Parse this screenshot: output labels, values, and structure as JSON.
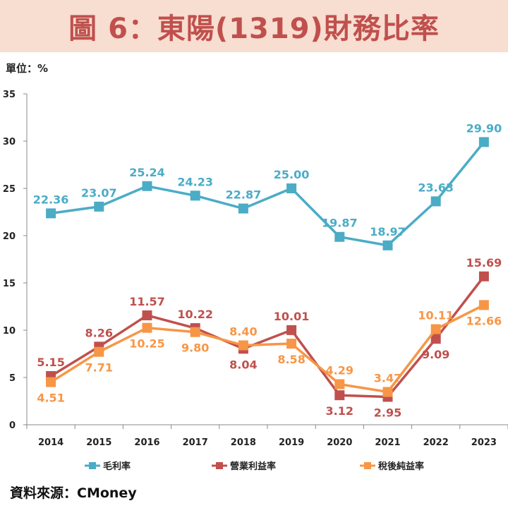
{
  "header": {
    "title": "圖 6：東陽(1319)財務比率"
  },
  "unit_label": "單位：%",
  "source_label": "資料來源：CMoney",
  "colors": {
    "gross": "#4bacc6",
    "operating": "#c0504d",
    "net": "#f79646",
    "title_bg": "#f8ddd1"
  },
  "chart_data": {
    "type": "line",
    "title": "圖 6：東陽(1319)財務比率",
    "xlabel": "",
    "ylabel": "單位：%",
    "ylim": [
      0,
      35
    ],
    "yticks": [
      0,
      5,
      10,
      15,
      20,
      25,
      30,
      35
    ],
    "categories": [
      "2014",
      "2015",
      "2016",
      "2017",
      "2018",
      "2019",
      "2020",
      "2021",
      "2022",
      "2023"
    ],
    "legend_position": "bottom",
    "series": [
      {
        "name": "毛利率",
        "values": [
          22.36,
          23.07,
          25.24,
          24.23,
          22.87,
          25.0,
          19.87,
          18.97,
          23.63,
          29.9
        ],
        "labels": [
          "22.36",
          "23.07",
          "25.24",
          "24.23",
          "22.87",
          "25.00",
          "19.87",
          "18.97",
          "23.63",
          "29.90"
        ]
      },
      {
        "name": "營業利益率",
        "values": [
          5.15,
          8.26,
          11.57,
          10.22,
          8.04,
          10.01,
          3.12,
          2.95,
          9.09,
          15.69
        ],
        "labels": [
          "5.15",
          "8.26",
          "11.57",
          "10.22",
          "8.04",
          "10.01",
          "3.12",
          "2.95",
          "9.09",
          "15.69"
        ]
      },
      {
        "name": "稅後純益率",
        "values": [
          4.51,
          7.71,
          10.25,
          9.8,
          8.4,
          8.58,
          4.29,
          3.47,
          10.11,
          12.66
        ],
        "labels": [
          "4.51",
          "7.71",
          "10.25",
          "9.80",
          "8.40",
          "8.58",
          "4.29",
          "3.47",
          "10.11",
          "12.66"
        ]
      }
    ]
  }
}
